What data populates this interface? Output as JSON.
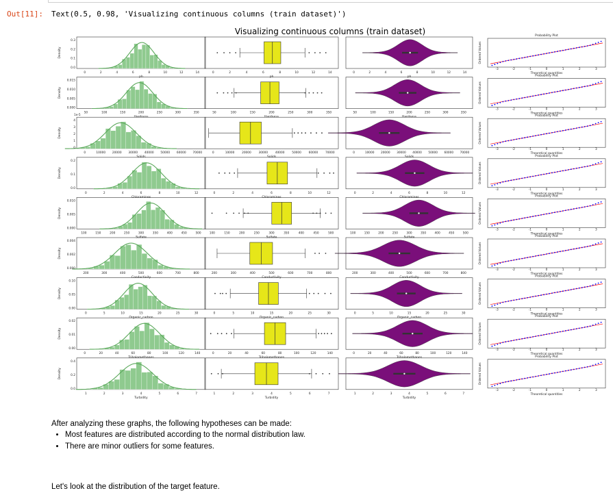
{
  "cell": {
    "prompt": "Out[11]:",
    "output_text": "Text(0.5, 0.98, 'Visualizing continuous columns (train dataset)')"
  },
  "figure": {
    "suptitle": "Visualizing continuous columns (train dataset)",
    "hist_color": "#5aa85a",
    "hist_fill": "#8fca8f",
    "box_color": "#e6e619",
    "violin_color": "#7a0f7a",
    "qq_point_color": "#0000ff",
    "qq_line_color": "#ff0000",
    "prob_plot_title": "Probability Plot",
    "qq_xlabel": "Theoretical quantities",
    "qq_ylabel": "Ordered Values",
    "density_label": "Density"
  },
  "chart_data": [
    {
      "type": "histogram",
      "feature": "ph",
      "xticks": [
        "0",
        "2",
        "4",
        "6",
        "8",
        "10",
        "12",
        "14"
      ],
      "yticks": [
        "0.0",
        "0.1",
        "0.2",
        "0.3"
      ],
      "xlim": [
        -1,
        15
      ],
      "mean": 7.1,
      "sd": 1.5,
      "outliers": [
        [
          0.5,
          1.3,
          2.0,
          2.7
        ],
        [
          11.5,
          12.2,
          12.8,
          13.5
        ]
      ]
    },
    {
      "type": "histogram",
      "feature": "Hardness",
      "xticks": [
        "50",
        "100",
        "150",
        "200",
        "250",
        "300",
        "350"
      ],
      "yticks": [
        "0.000",
        "0.005",
        "0.010",
        "0.015"
      ],
      "xlim": [
        40,
        360
      ],
      "mean": 196,
      "sd": 33,
      "outliers": [
        [
          70,
          85,
          95,
          105,
          115
        ],
        [
          280,
          290,
          300,
          310,
          320
        ]
      ]
    },
    {
      "type": "histogram",
      "feature": "Solids",
      "scale_label": "1e-5",
      "xticks": [
        "0",
        "10000",
        "20000",
        "30000",
        "40000",
        "50000",
        "60000",
        "70000"
      ],
      "yticks": [
        "0",
        "1",
        "2",
        "3",
        "4"
      ],
      "xlim": [
        -3000,
        70000
      ],
      "mean": 22000,
      "sd": 8800,
      "outliers": [
        [],
        [
          46000,
          48000,
          50000,
          52000,
          55000,
          58000,
          61000
        ]
      ]
    },
    {
      "type": "histogram",
      "feature": "Chloramines",
      "xticks": [
        "0",
        "2",
        "4",
        "6",
        "8",
        "10",
        "12"
      ],
      "yticks": [
        "0.0",
        "0.1",
        "0.2"
      ],
      "xlim": [
        -0.5,
        13.5
      ],
      "mean": 7.1,
      "sd": 1.6,
      "outliers": [
        [
          1.0,
          1.6,
          2.1,
          2.6
        ],
        [
          11.4,
          12.0,
          12.6,
          13.0
        ]
      ]
    },
    {
      "type": "histogram",
      "feature": "Sulfate",
      "xticks": [
        "100",
        "150",
        "200",
        "250",
        "300",
        "350",
        "400",
        "450",
        "500"
      ],
      "yticks": [
        "0.000",
        "0.005",
        "0.010"
      ],
      "xlim": [
        120,
        490
      ],
      "mean": 333,
      "sd": 41,
      "outliers": [
        [
          140,
          180,
          200,
          215,
          230,
          240
        ],
        [
          420,
          430,
          440,
          455,
          470
        ]
      ]
    },
    {
      "type": "histogram",
      "feature": "Conductivity",
      "xticks": [
        "200",
        "300",
        "400",
        "500",
        "600",
        "700",
        "800"
      ],
      "yticks": [
        "0.000",
        "0.002",
        "0.004"
      ],
      "xlim": [
        160,
        790
      ],
      "mean": 426,
      "sd": 80,
      "outliers": [
        [],
        [
          680,
          700,
          730
        ]
      ]
    },
    {
      "type": "histogram",
      "feature": "Organic_carbon",
      "xticks": [
        "0",
        "5",
        "10",
        "15",
        "20",
        "25",
        "30"
      ],
      "yticks": [
        "0.00",
        "0.05",
        "0.10"
      ],
      "xlim": [
        0,
        30
      ],
      "mean": 14.3,
      "sd": 3.3,
      "outliers": [
        [
          2.3,
          3.5,
          4.0,
          4.8
        ],
        [
          23.5,
          24.5,
          25.5,
          27.0,
          28.3
        ]
      ]
    },
    {
      "type": "histogram",
      "feature": "Trihalomethanes",
      "xticks": [
        "0",
        "20",
        "40",
        "60",
        "80",
        "100",
        "120",
        "140"
      ],
      "yticks": [
        "0.00",
        "0.01",
        "0.02"
      ],
      "xlim": [
        -5,
        130
      ],
      "mean": 66,
      "sd": 16,
      "outliers": [
        [
          1,
          8,
          12,
          17,
          22
        ],
        [
          110,
          113,
          116,
          119,
          123
        ]
      ]
    },
    {
      "type": "histogram",
      "feature": "Turbidity",
      "xticks": [
        "1",
        "2",
        "3",
        "4",
        "5",
        "6",
        "7"
      ],
      "yticks": [
        "0.0",
        "0.2",
        "0.4"
      ],
      "xlim": [
        1.2,
        7.2
      ],
      "mean": 3.97,
      "sd": 0.78,
      "outliers": [
        [
          1.5,
          1.8,
          2.0
        ],
        [
          5.9,
          6.2,
          6.5,
          6.8
        ]
      ]
    }
  ],
  "markdown": {
    "paragraph1": "After analyzing these graphs, the following hypotheses can be made:",
    "bullets": [
      "Most features are distributed according to the normal distribution law.",
      "There are minor outliers for some features."
    ],
    "paragraph2": "Let's look at the distribution of the target feature."
  }
}
